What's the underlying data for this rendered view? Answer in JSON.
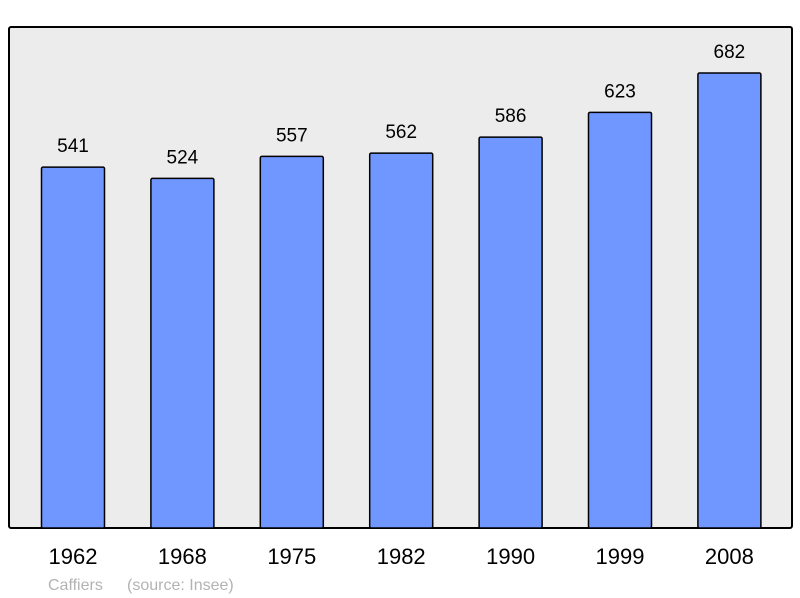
{
  "chart_data": {
    "type": "bar",
    "title": "",
    "xlabel": "",
    "ylabel": "",
    "categories": [
      "1962",
      "1968",
      "1975",
      "1982",
      "1990",
      "1999",
      "2008"
    ],
    "values": [
      541,
      524,
      557,
      562,
      586,
      623,
      682
    ],
    "ylim": [
      0,
      751
    ],
    "grid": false,
    "data_labels": true,
    "colors": {
      "bar": "#7096ff",
      "plot_background": "#ececec",
      "outline": "#000000",
      "footer_text": "#b3b3b3"
    }
  },
  "footer": {
    "place": "Caffiers",
    "source": "(source: Insee)"
  }
}
